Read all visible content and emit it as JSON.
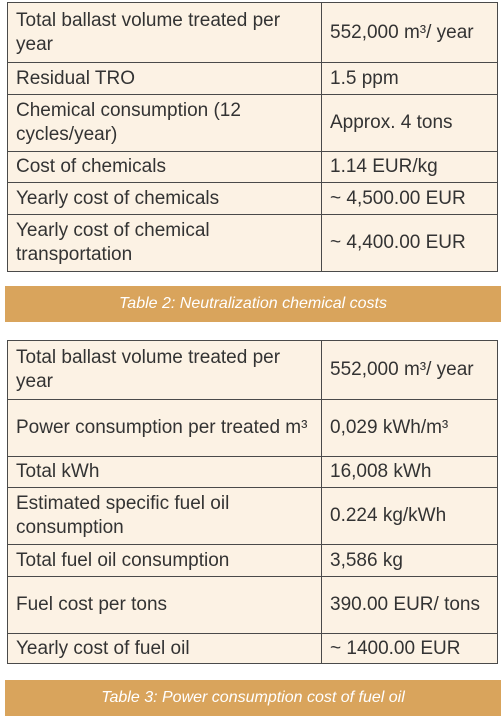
{
  "tables": [
    {
      "rows": [
        [
          "Total ballast volume treated per year",
          "552,000 m³/ year"
        ],
        [
          "Residual TRO",
          "1.5 ppm"
        ],
        [
          "Chemical consumption (12 cycles/year)",
          "Approx. 4 tons"
        ],
        [
          "Cost of chemicals",
          "1.14 EUR/kg"
        ],
        [
          "Yearly cost of chemicals",
          "~ 4,500.00 EUR"
        ],
        [
          "Yearly cost of chemical transportation",
          "~ 4,400.00 EUR"
        ]
      ],
      "caption": "Table 2: Neutralization chemical costs"
    },
    {
      "rows": [
        [
          "Total ballast volume treated per year",
          "552,000 m³/ year"
        ],
        [
          "Power consumption per treated m³",
          "0,029 kWh/m³"
        ],
        [
          "Total kWh",
          "16,008 kWh"
        ],
        [
          "Estimated specific fuel oil consumption",
          "0.224 kg/kWh"
        ],
        [
          "Total fuel oil consumption",
          "3,586 kg"
        ],
        [
          "Fuel cost per tons",
          "390.00 EUR/ tons"
        ],
        [
          "Yearly cost of fuel oil",
          "~ 1400.00 EUR"
        ]
      ],
      "caption": "Table 3: Power consumption cost of fuel oil"
    }
  ]
}
